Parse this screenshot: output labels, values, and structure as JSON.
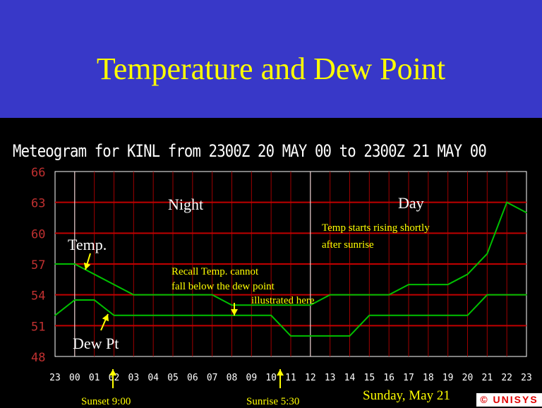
{
  "slide": {
    "title": "Temperature and Dew Point"
  },
  "chart_data": {
    "type": "line",
    "title": "Meteogram for KINL from 2300Z 20 MAY 00 to 2300Z 21 MAY 00",
    "x_ticks": [
      "23",
      "00",
      "01",
      "02",
      "03",
      "04",
      "05",
      "06",
      "07",
      "08",
      "09",
      "10",
      "11",
      "12",
      "13",
      "14",
      "15",
      "16",
      "17",
      "18",
      "19",
      "20",
      "21",
      "22",
      "23"
    ],
    "y_ticks": [
      48,
      51,
      54,
      57,
      60,
      63,
      66
    ],
    "ylim": [
      48,
      66
    ],
    "grid": true,
    "series": [
      {
        "name": "Temp.",
        "color": "#00c000",
        "values": [
          57,
          57,
          56,
          55,
          54,
          54,
          54,
          54,
          54,
          53,
          53,
          53,
          53,
          53,
          54,
          54,
          54,
          54,
          55,
          55,
          55,
          56,
          58,
          63,
          62
        ]
      },
      {
        "name": "Dew Pt",
        "color": "#00c000",
        "values": [
          52,
          53.5,
          53.5,
          52,
          52,
          52,
          52,
          52,
          52,
          52,
          52,
          52,
          50,
          50,
          50,
          50,
          52,
          52,
          52,
          52,
          52,
          52,
          54,
          54,
          54
        ]
      }
    ]
  },
  "annotations": {
    "night": "Night",
    "day": "Day",
    "temp_label": "Temp.",
    "dew_label": "Dew Pt",
    "rising_line1": "Temp starts rising shortly",
    "rising_line2": "after sunrise",
    "recall_line1": "Recall Temp. cannot",
    "recall_line2": "fall below the dew point",
    "recall_line3": "illustrated here",
    "sunset": "Sunset 9:00",
    "sunrise": "Sunrise 5:30",
    "date": "Sunday, May 21",
    "logo": "© UNISYS"
  },
  "colors": {
    "banner": "#3838c8",
    "title_text": "#ffff00",
    "grid_major": "#c00000",
    "grid_vertical": "#a00000",
    "y_tick_text": "#c03030",
    "line": "#00c000",
    "divider": "#ffffff",
    "arrow": "#ffff00"
  }
}
